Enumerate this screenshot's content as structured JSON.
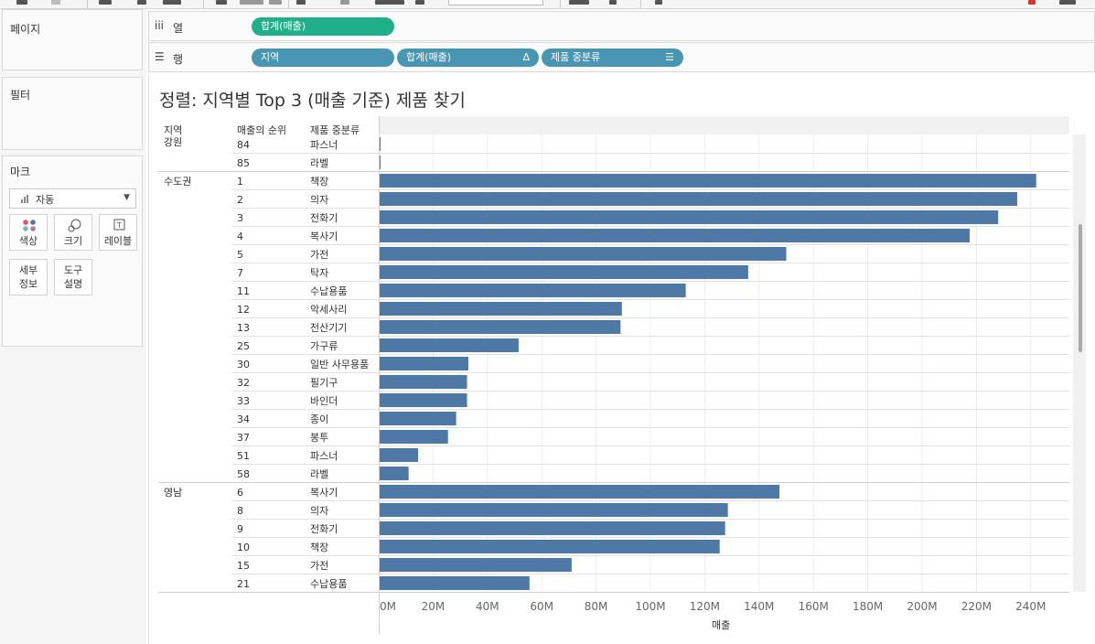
{
  "left_panel": {
    "pages_title": "페이지",
    "filters_title": "필터",
    "marks_title": "마크",
    "mark_type": "자동",
    "mark_buttons": [
      "색상",
      "크기",
      "레이블"
    ],
    "mark_buttons2": [
      [
        "세부",
        "정보"
      ],
      [
        "도구",
        "설명"
      ]
    ]
  },
  "shelves": {
    "columns_label": "열",
    "rows_label": "행",
    "column_pills": [
      "합계(매출)"
    ],
    "row_pills": [
      "지역",
      "합계(매출)",
      "제품 중분류"
    ]
  },
  "viz": {
    "title": "정렬: 지역별 Top 3 (매출 기준) 제품 찾기",
    "col_headers": [
      "지역",
      "매출의 순위",
      "제품 중분류"
    ],
    "xlabel": "매출"
  },
  "colors": {
    "bar": "#4e79a7",
    "green_pill": "#1fb08a",
    "blue_pill": "#4996b2"
  },
  "chart_data": {
    "type": "bar",
    "orientation": "horizontal",
    "xlabel": "매출",
    "xlim": [
      0,
      250000000
    ],
    "x_ticks": [
      "0M",
      "20M",
      "40M",
      "60M",
      "80M",
      "100M",
      "120M",
      "140M",
      "160M",
      "180M",
      "200M",
      "220M",
      "240M"
    ],
    "x_tick_values": [
      0,
      20000000,
      40000000,
      60000000,
      80000000,
      100000000,
      120000000,
      140000000,
      160000000,
      180000000,
      200000000,
      220000000,
      240000000
    ],
    "rows": [
      {
        "region": "강원",
        "rank": "84",
        "category": "파스너",
        "value": 700000
      },
      {
        "region": "",
        "rank": "85",
        "category": "라벨",
        "value": 500000
      },
      {
        "region": "수도권",
        "rank": "1",
        "category": "책장",
        "value": 242000000
      },
      {
        "region": "",
        "rank": "2",
        "category": "의자",
        "value": 235000000
      },
      {
        "region": "",
        "rank": "3",
        "category": "전화기",
        "value": 228000000
      },
      {
        "region": "",
        "rank": "4",
        "category": "복사기",
        "value": 217500000
      },
      {
        "region": "",
        "rank": "5",
        "category": "가전",
        "value": 150000000
      },
      {
        "region": "",
        "rank": "7",
        "category": "탁자",
        "value": 136000000
      },
      {
        "region": "",
        "rank": "11",
        "category": "수납용품",
        "value": 113000000
      },
      {
        "region": "",
        "rank": "12",
        "category": "악세사리",
        "value": 89500000
      },
      {
        "region": "",
        "rank": "13",
        "category": "전산기기",
        "value": 89000000
      },
      {
        "region": "",
        "rank": "25",
        "category": "가구류",
        "value": 51500000
      },
      {
        "region": "",
        "rank": "30",
        "category": "일반 사무용품",
        "value": 33000000
      },
      {
        "region": "",
        "rank": "32",
        "category": "필기구",
        "value": 32500000
      },
      {
        "region": "",
        "rank": "33",
        "category": "바인더",
        "value": 32500000
      },
      {
        "region": "",
        "rank": "34",
        "category": "종이",
        "value": 28500000
      },
      {
        "region": "",
        "rank": "37",
        "category": "봉투",
        "value": 25500000
      },
      {
        "region": "",
        "rank": "51",
        "category": "파스너",
        "value": 14500000
      },
      {
        "region": "",
        "rank": "58",
        "category": "라벨",
        "value": 11000000
      },
      {
        "region": "영남",
        "rank": "6",
        "category": "복사기",
        "value": 147500000
      },
      {
        "region": "",
        "rank": "8",
        "category": "의자",
        "value": 128500000
      },
      {
        "region": "",
        "rank": "9",
        "category": "전화기",
        "value": 127500000
      },
      {
        "region": "",
        "rank": "10",
        "category": "책장",
        "value": 125500000
      },
      {
        "region": "",
        "rank": "15",
        "category": "가전",
        "value": 71000000
      },
      {
        "region": "",
        "rank": "21",
        "category": "수납용품",
        "value": 55500000
      }
    ]
  }
}
